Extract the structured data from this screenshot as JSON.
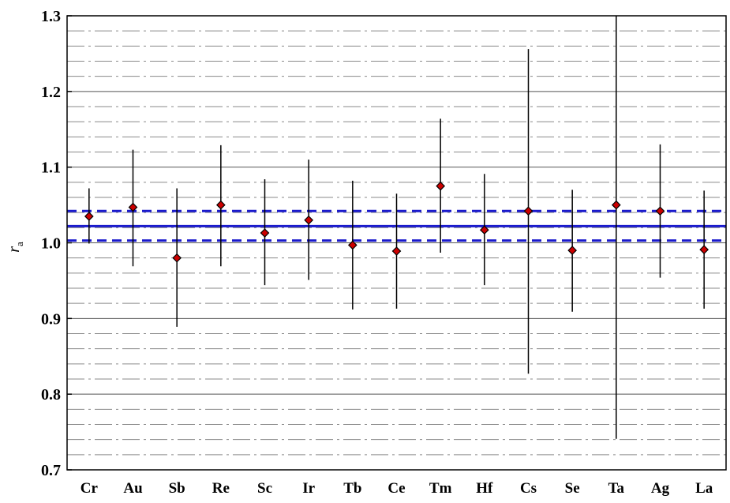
{
  "chart_data": {
    "type": "scatter",
    "ylabel": "r",
    "ylabel_subscript": "a",
    "xlabel": "",
    "ylim": [
      0.7,
      1.3
    ],
    "yticks": [
      "0.7",
      "0.8",
      "0.9",
      "1.0",
      "1.1",
      "1.2",
      "1.3"
    ],
    "categories": [
      "Cr",
      "Au",
      "Sb",
      "Re",
      "Sc",
      "Ir",
      "Tb",
      "Ce",
      "Tm",
      "Hf",
      "Cs",
      "Se",
      "Ta",
      "Ag",
      "La"
    ],
    "values": [
      1.035,
      1.047,
      0.98,
      1.05,
      1.013,
      1.03,
      0.997,
      0.989,
      1.075,
      1.017,
      1.042,
      0.99,
      1.05,
      1.042,
      0.991
    ],
    "error_low": [
      0.999,
      0.969,
      0.889,
      0.969,
      0.944,
      0.951,
      0.912,
      0.913,
      0.987,
      0.944,
      0.827,
      0.909,
      0.741,
      0.954,
      0.913
    ],
    "error_high": [
      1.072,
      1.123,
      1.072,
      1.129,
      1.084,
      1.11,
      1.082,
      1.065,
      1.164,
      1.091,
      1.256,
      1.07,
      1.3,
      1.13,
      1.069
    ],
    "reference_mean": 1.022,
    "reference_band": [
      1.003,
      1.042
    ],
    "grid": "major solid every 0.1, minor dash-dot every 0.02",
    "colors": {
      "marker_fill": "#cc0000",
      "marker_edge": "#000000",
      "errorbar": "#000000",
      "reference_line": "#1a1acc",
      "grid_major": "#555555",
      "grid_minor": "#8a8a8a"
    }
  }
}
